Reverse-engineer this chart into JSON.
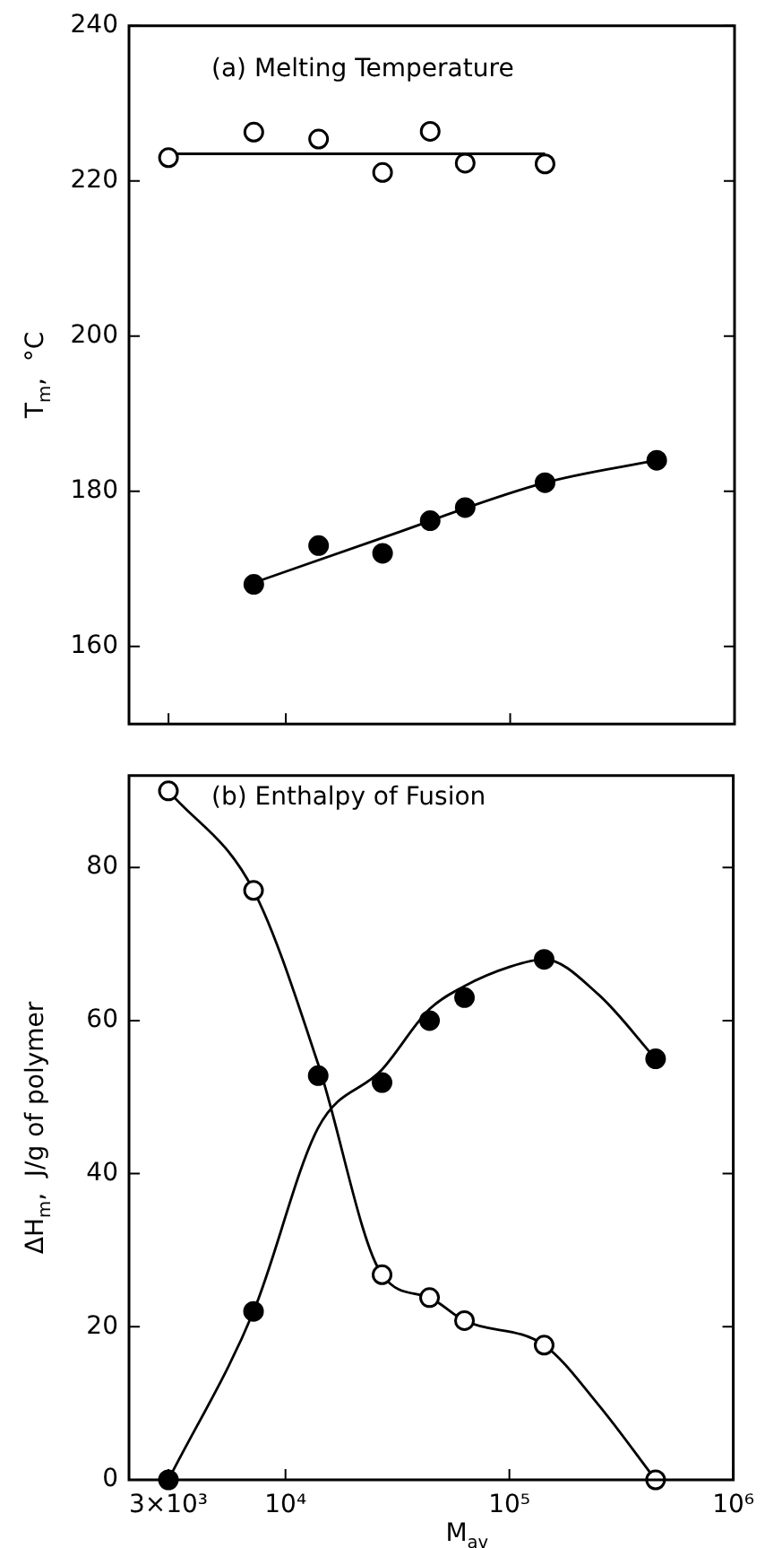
{
  "chart_data": [
    {
      "type": "scatter",
      "title": "(a) Melting Temperature",
      "ylabel": "T$_{m}$,  °C",
      "xlim": [
        2000,
        1000000
      ],
      "xticks": [
        {
          "value": 3000,
          "label": null
        },
        {
          "value": 10000,
          "label": null
        },
        {
          "value": 100000,
          "label": null
        },
        {
          "value": 1000000,
          "label": null
        }
      ],
      "ylim": [
        150,
        240
      ],
      "yticks": [
        160,
        180,
        200,
        220,
        240
      ],
      "log": "x",
      "grid": false,
      "legend": false,
      "tick_labels": "y",
      "marker": "circle",
      "series": [
        {
          "color": "#ffffff",
          "x": [
            3000,
            7200,
            14000,
            27000,
            44000,
            63000,
            143000
          ],
          "values": [
            223,
            226.3,
            225.4,
            221.1,
            226.4,
            222.3,
            222.2
          ]
        },
        {
          "color": "#000000",
          "x": [
            7200,
            14000,
            27000,
            44000,
            63000,
            143000,
            450000
          ],
          "values": [
            168,
            173,
            172,
            176.2,
            177.9,
            181.1,
            184
          ]
        },
        {
          "type": "line",
          "marker": "none",
          "color": "#000000",
          "x": [
            3000,
            143000
          ],
          "values": [
            223.5,
            223.5
          ]
        },
        {
          "type": "line",
          "marker": "none",
          "color": "#000000",
          "x": [
            7200,
            27000,
            143000,
            450000
          ],
          "values": [
            168.2,
            174,
            181.1,
            184
          ]
        }
      ]
    },
    {
      "type": "scatter",
      "title": "(b) Enthalpy of Fusion",
      "ylabel": "ΔH$_{m}$,  J/g of polymer",
      "xlabel": "M$_{av}$",
      "xlim": [
        2000,
        1000000
      ],
      "xticks": [
        {
          "value": 3000,
          "label": "3×10³"
        },
        {
          "value": 10000,
          "label": "10⁴"
        },
        {
          "value": 100000,
          "label": "10⁵"
        },
        {
          "value": 1000000,
          "label": "10⁶"
        }
      ],
      "ylim": [
        0,
        92
      ],
      "yticks": [
        0,
        20,
        40,
        60,
        80
      ],
      "log": "x",
      "grid": false,
      "legend": false,
      "marker": "circle",
      "series": [
        {
          "color": "#ffffff",
          "x": [
            3000,
            7200,
            27000,
            44000,
            63000,
            143000,
            450000
          ],
          "values": [
            90,
            77,
            26.8,
            23.8,
            20.8,
            17.6,
            0
          ]
        },
        {
          "color": "#000000",
          "x": [
            3000,
            7200,
            14000,
            27000,
            44000,
            63000,
            143000,
            450000
          ],
          "values": [
            0,
            22,
            52.8,
            51.9,
            60,
            63,
            68,
            55
          ]
        },
        {
          "type": "line",
          "marker": "none",
          "color": "#000000",
          "x": [
            3000,
            7200,
            14000,
            27000,
            44000,
            63000,
            143000,
            250000,
            450000
          ],
          "values": [
            90,
            77,
            54.3,
            26.8,
            23.8,
            20.8,
            17.6,
            9.8,
            0
          ]
        },
        {
          "type": "line",
          "marker": "none",
          "color": "#000000",
          "x": [
            3000,
            7200,
            14000,
            27000,
            44000,
            63000,
            100000,
            143000,
            250000,
            450000
          ],
          "values": [
            0,
            22,
            46,
            53.6,
            61.5,
            64.5,
            67,
            68,
            63.4,
            55
          ]
        }
      ]
    }
  ]
}
